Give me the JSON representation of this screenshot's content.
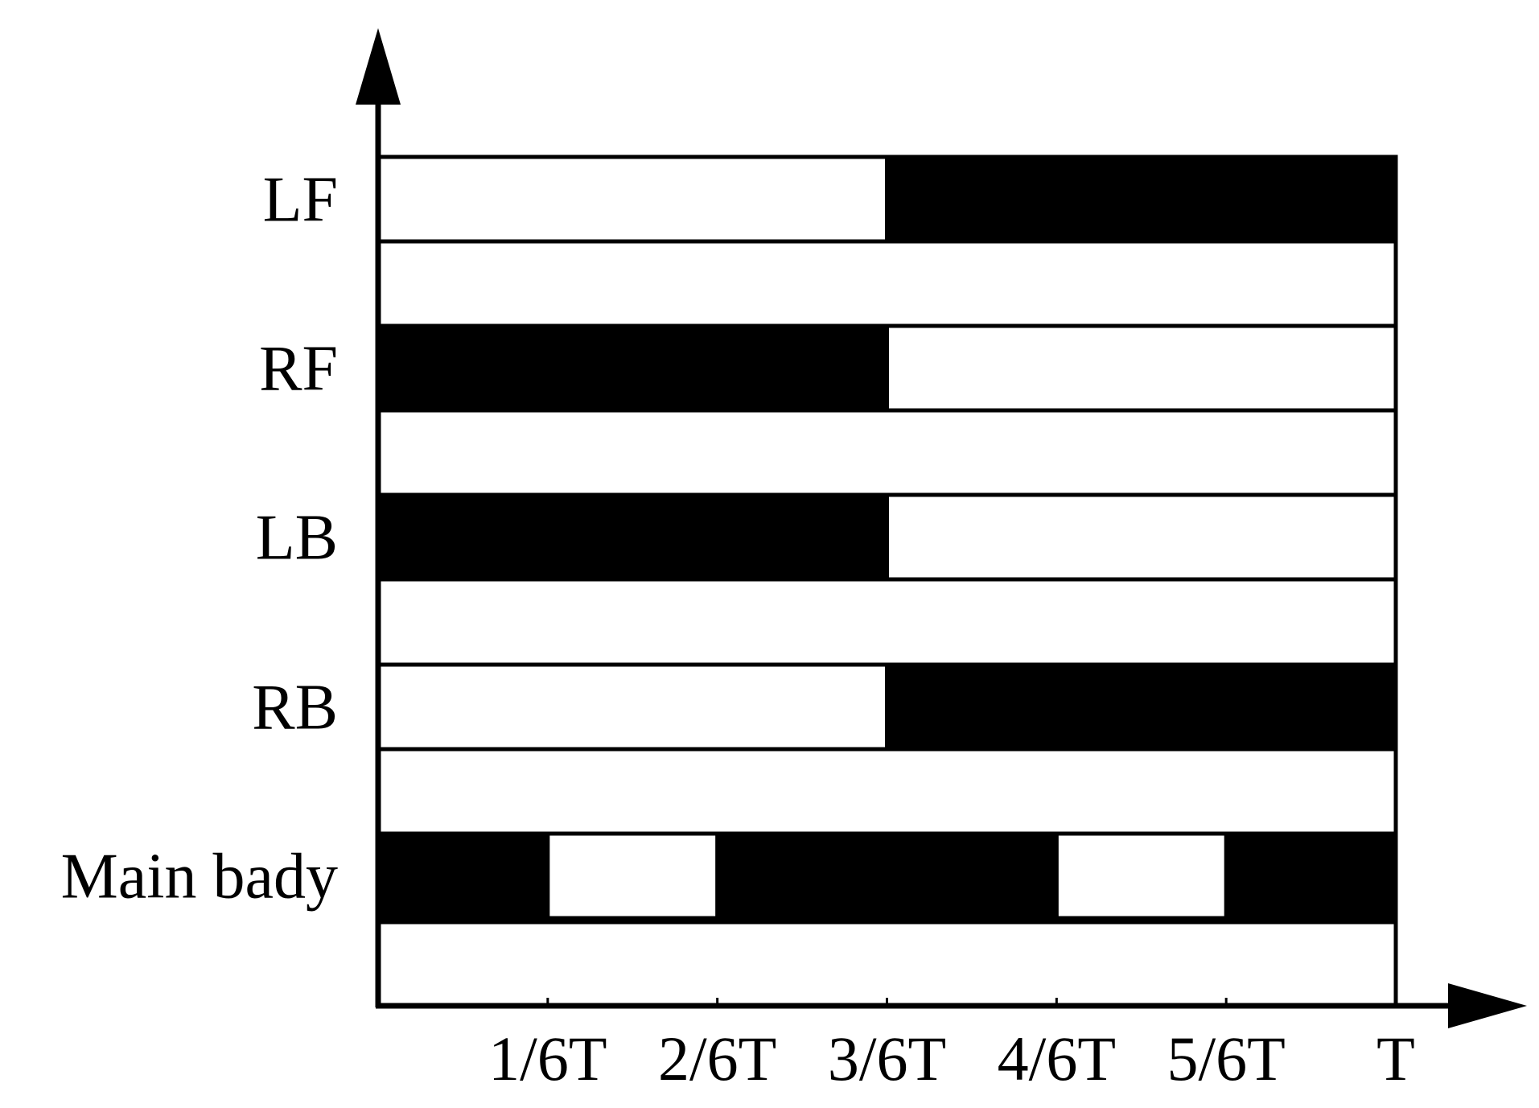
{
  "colors": {
    "stance": "#000000",
    "swing": "#ffffff",
    "line": "#000000"
  },
  "x_axis": {
    "range": [
      0,
      6
    ],
    "ticks": [
      {
        "pos": 1,
        "label": "1/6T"
      },
      {
        "pos": 2,
        "label": "2/6T"
      },
      {
        "pos": 3,
        "label": "3/6T"
      },
      {
        "pos": 4,
        "label": "4/6T"
      },
      {
        "pos": 5,
        "label": "5/6T"
      },
      {
        "pos": 6,
        "label": "T"
      }
    ]
  },
  "rows": [
    {
      "label": "LF",
      "filled": [
        [
          3,
          6
        ]
      ]
    },
    {
      "label": "RF",
      "filled": [
        [
          0,
          3
        ]
      ]
    },
    {
      "label": "LB",
      "filled": [
        [
          0,
          3
        ]
      ]
    },
    {
      "label": "RB",
      "filled": [
        [
          3,
          6
        ]
      ]
    },
    {
      "label": "Main bady",
      "filled": [
        [
          0,
          1
        ],
        [
          2,
          4
        ],
        [
          5,
          6
        ]
      ]
    }
  ]
}
